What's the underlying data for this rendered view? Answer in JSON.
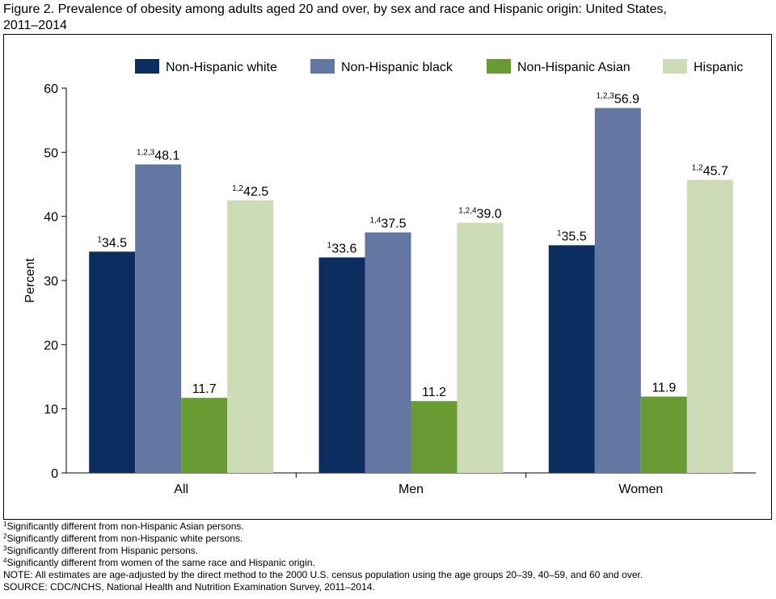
{
  "chart_data": {
    "type": "bar",
    "title": "Figure 2. Prevalence of obesity among adults aged 20 and over, by sex and race and Hispanic origin: United States, 2011–2014",
    "y_label": "Percent",
    "categories": [
      "All",
      "Men",
      "Women"
    ],
    "series": [
      {
        "name": "Non-Hispanic white",
        "color": "#0c2d5f",
        "values": [
          34.5,
          33.6,
          35.5
        ],
        "value_labels": [
          "34.5",
          "33.6",
          "35.5"
        ],
        "notes": [
          "1",
          "1",
          "1"
        ]
      },
      {
        "name": "Non-Hispanic black",
        "color": "#6377a2",
        "values": [
          48.1,
          37.5,
          56.9
        ],
        "value_labels": [
          "48.1",
          "37.5",
          "56.9"
        ],
        "notes": [
          "1,2,3",
          "1,4",
          "1,2,3"
        ]
      },
      {
        "name": "Non-Hispanic Asian",
        "color": "#6a9a34",
        "values": [
          11.7,
          11.2,
          11.9
        ],
        "value_labels": [
          "11.7",
          "11.2",
          "11.9"
        ],
        "notes": [
          null,
          null,
          null
        ]
      },
      {
        "name": "Hispanic",
        "color": "#cddcb6",
        "values": [
          42.5,
          39.0,
          45.7
        ],
        "value_labels": [
          "42.5",
          "39.0",
          "45.7"
        ],
        "notes": [
          "1,2",
          "1,2,4",
          "1,2"
        ]
      }
    ],
    "ylim": [
      0,
      60
    ],
    "yticks": [
      0,
      10,
      20,
      30,
      40,
      50,
      60
    ],
    "grid": false,
    "legend": "top",
    "footnotes": [
      {
        "mark": "1",
        "text": "Significantly different from non-Hispanic Asian persons."
      },
      {
        "mark": "2",
        "text": "Significantly different from non-Hispanic white persons."
      },
      {
        "mark": "3",
        "text": "Significantly different from Hispanic persons."
      },
      {
        "mark": "4",
        "text": "Significantly different from women of the same race and Hispanic origin."
      }
    ],
    "note": "NOTE: All estimates are age-adjusted by the direct method to the 2000 U.S. census population using the age groups 20–39, 40–59, and 60 and over.",
    "source": "SOURCE: CDC/NCHS, National Health and Nutrition Examination Survey, 2011–2014."
  }
}
